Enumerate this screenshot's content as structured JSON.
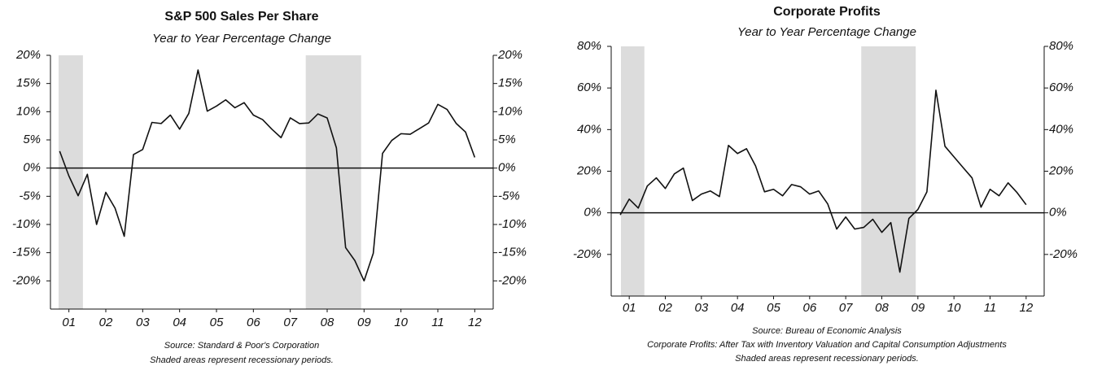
{
  "chart_data": [
    {
      "type": "line",
      "title": "S&P 500 Sales Per Share",
      "subtitle": "Year to Year Percentage Change",
      "notes": [
        "Source: Standard & Poor's Corporation",
        "Shaded areas represent recessionary periods."
      ],
      "x": [
        1.25,
        1.5,
        1.75,
        2,
        2.25,
        2.5,
        2.75,
        3,
        3.25,
        3.5,
        3.75,
        4,
        4.25,
        4.5,
        4.75,
        5,
        5.25,
        5.5,
        5.75,
        6,
        6.25,
        6.5,
        6.75,
        7,
        7.25,
        7.5,
        7.75,
        8,
        8.25,
        8.5,
        8.75,
        9,
        9.25,
        9.5,
        9.75,
        10,
        10.25,
        10.5,
        10.75,
        11,
        11.25,
        11.5,
        11.75,
        12,
        12.25,
        12.5
      ],
      "series": [
        {
          "name": "S&P 500 Sales Per Share",
          "color": "#111111",
          "values": [
            3.0,
            -1.4,
            -4.9,
            -1.1,
            -10,
            -4.3,
            -7.1,
            -12.1,
            2.4,
            3.3,
            8.1,
            7.9,
            9.4,
            6.9,
            9.7,
            17.4,
            10.1,
            11,
            12.1,
            10.7,
            11.6,
            9.4,
            8.6,
            6.9,
            5.4,
            8.9,
            7.9,
            8,
            9.6,
            8.9,
            3.6,
            -14.1,
            -16.4,
            -20,
            -15.1,
            2.6,
            4.9,
            6.1,
            6.0,
            7,
            8,
            11.3,
            10.4,
            7.9,
            6.4,
            1.9
          ]
        }
      ],
      "recessions": [
        [
          1.22,
          1.88
        ],
        [
          7.92,
          9.42
        ]
      ],
      "recession_color": "#dcdcdc",
      "xlim": [
        1,
        13
      ],
      "xticks": [
        {
          "value": 1.5,
          "label": "01"
        },
        {
          "value": 2.5,
          "label": "02"
        },
        {
          "value": 3.5,
          "label": "03"
        },
        {
          "value": 4.5,
          "label": "04"
        },
        {
          "value": 5.5,
          "label": "05"
        },
        {
          "value": 6.5,
          "label": "06"
        },
        {
          "value": 7.5,
          "label": "07"
        },
        {
          "value": 8.5,
          "label": "08"
        },
        {
          "value": 9.5,
          "label": "09"
        },
        {
          "value": 10.5,
          "label": "10"
        },
        {
          "value": 11.5,
          "label": "11"
        },
        {
          "value": 12.5,
          "label": "12"
        }
      ],
      "ylim": [
        -25,
        20
      ],
      "yticks": [
        {
          "value": 20,
          "label": "20%"
        },
        {
          "value": 15,
          "label": "15%"
        },
        {
          "value": 10,
          "label": "10%"
        },
        {
          "value": 5,
          "label": "5%"
        },
        {
          "value": 0,
          "label": "0%"
        },
        {
          "value": -5,
          "label": "-5%"
        },
        {
          "value": -10,
          "label": "-10%"
        },
        {
          "value": -15,
          "label": "-15%"
        },
        {
          "value": -20,
          "label": "-20%"
        }
      ]
    },
    {
      "type": "line",
      "title": "Corporate Profits",
      "subtitle": "Year to Year Percentage Change",
      "notes": [
        "Source: Bureau of Economic Analysis",
        "Corporate Profits: After Tax with Inventory Valuation and Capital Consumption Adjustments",
        "Shaded areas represent recessionary periods."
      ],
      "x": [
        1.25,
        1.5,
        1.75,
        2,
        2.25,
        2.5,
        2.75,
        3,
        3.25,
        3.5,
        3.75,
        4,
        4.25,
        4.5,
        4.75,
        5,
        5.25,
        5.5,
        5.75,
        6,
        6.25,
        6.5,
        6.75,
        7,
        7.25,
        7.5,
        7.75,
        8,
        8.25,
        8.5,
        8.75,
        9,
        9.25,
        9.5,
        9.75,
        10,
        10.25,
        10.5,
        10.75,
        11,
        11.25,
        11.5,
        11.75,
        12,
        12.25,
        12.5
      ],
      "series": [
        {
          "name": "Corporate Profits",
          "color": "#111111",
          "values": [
            -1,
            6.6,
            2.3,
            12.9,
            16.8,
            11.7,
            18.7,
            21.5,
            5.9,
            9,
            10.5,
            7.8,
            32.4,
            28.5,
            30.8,
            22.6,
            10.1,
            11.3,
            8.2,
            13.6,
            12.5,
            9,
            10.5,
            4.3,
            -7.8,
            -2,
            -7.8,
            -7,
            -3.1,
            -9.4,
            -4.7,
            -28.5,
            -2.7,
            1.6,
            10.1,
            58.9,
            32,
            26.9,
            21.8,
            16.8,
            2.7,
            11.3,
            8.2,
            14.4,
            9.7,
            3.9
          ]
        }
      ],
      "recessions": [
        [
          1.27,
          1.92
        ],
        [
          7.93,
          9.44
        ]
      ],
      "recession_color": "#dcdcdc",
      "xlim": [
        1,
        13
      ],
      "xticks": [
        {
          "value": 1.5,
          "label": "01"
        },
        {
          "value": 2.5,
          "label": "02"
        },
        {
          "value": 3.5,
          "label": "03"
        },
        {
          "value": 4.5,
          "label": "04"
        },
        {
          "value": 5.5,
          "label": "05"
        },
        {
          "value": 6.5,
          "label": "06"
        },
        {
          "value": 7.5,
          "label": "07"
        },
        {
          "value": 8.5,
          "label": "08"
        },
        {
          "value": 9.5,
          "label": "09"
        },
        {
          "value": 10.5,
          "label": "10"
        },
        {
          "value": 11.5,
          "label": "11"
        },
        {
          "value": 12.5,
          "label": "12"
        }
      ],
      "ylim": [
        -40,
        80
      ],
      "yticks": [
        {
          "value": 80,
          "label": "80%"
        },
        {
          "value": 60,
          "label": "60%"
        },
        {
          "value": 40,
          "label": "40%"
        },
        {
          "value": 20,
          "label": "20%"
        },
        {
          "value": 0,
          "label": "0%"
        },
        {
          "value": -20,
          "label": "-20%"
        }
      ]
    }
  ]
}
